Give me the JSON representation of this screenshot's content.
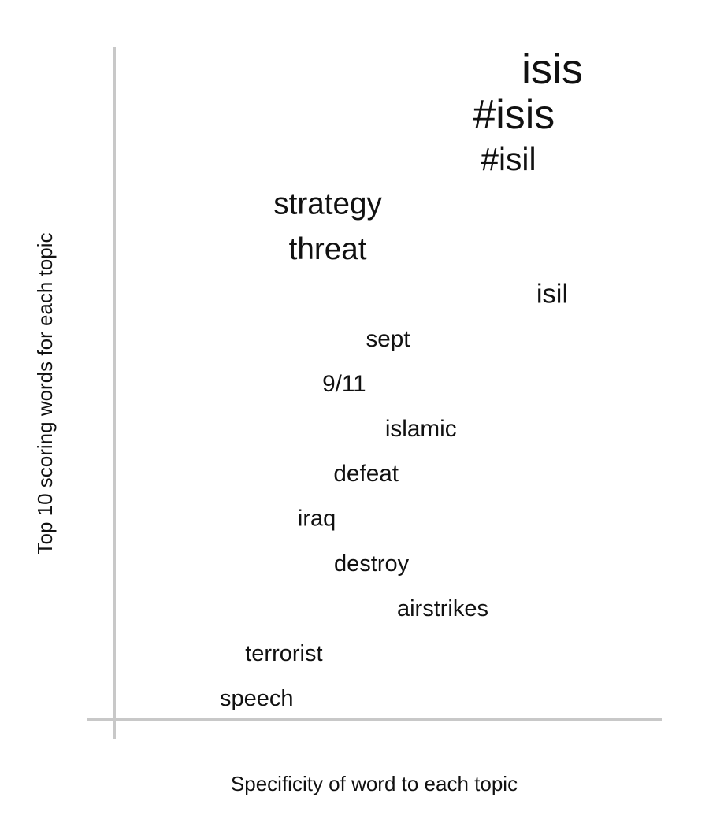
{
  "chart_data": {
    "type": "scatter",
    "xlabel": "Specificity of word to each topic",
    "ylabel": "Top 10 scoring words for each topic",
    "grid": false,
    "points": [
      {
        "label": "isis",
        "rank": 1,
        "specificity": 0.8,
        "weight": 1.0
      },
      {
        "label": "#isis",
        "rank": 2,
        "specificity": 0.73,
        "weight": 0.94
      },
      {
        "label": "#isil",
        "rank": 3,
        "specificity": 0.72,
        "weight": 0.62
      },
      {
        "label": "strategy",
        "rank": 4,
        "specificity": 0.39,
        "weight": 0.56
      },
      {
        "label": "threat",
        "rank": 5,
        "specificity": 0.39,
        "weight": 0.56
      },
      {
        "label": "isil",
        "rank": 6,
        "specificity": 0.8,
        "weight": 0.44
      },
      {
        "label": "sept",
        "rank": 7,
        "specificity": 0.5,
        "weight": 0.3
      },
      {
        "label": "9/11",
        "rank": 8,
        "specificity": 0.42,
        "weight": 0.3
      },
      {
        "label": "islamic",
        "rank": 9,
        "specificity": 0.56,
        "weight": 0.3
      },
      {
        "label": "defeat",
        "rank": 10,
        "specificity": 0.46,
        "weight": 0.3
      },
      {
        "label": "iraq",
        "rank": 11,
        "specificity": 0.37,
        "weight": 0.28
      },
      {
        "label": "destroy",
        "rank": 12,
        "specificity": 0.47,
        "weight": 0.28
      },
      {
        "label": "airstrikes",
        "rank": 13,
        "specificity": 0.6,
        "weight": 0.28
      },
      {
        "label": "terrorist",
        "rank": 14,
        "specificity": 0.31,
        "weight": 0.28
      },
      {
        "label": "speech",
        "rank": 15,
        "specificity": 0.26,
        "weight": 0.28
      }
    ]
  }
}
